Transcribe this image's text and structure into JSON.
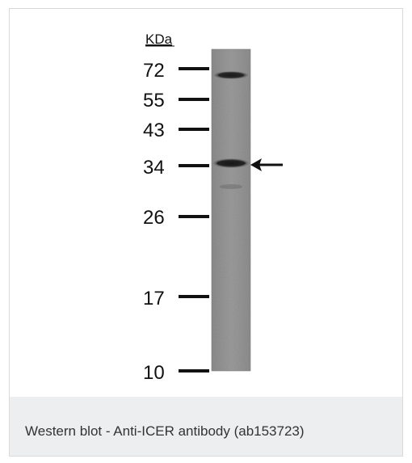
{
  "blot": {
    "unit_label": "KDa",
    "markers": [
      {
        "label": "72",
        "kda": 72
      },
      {
        "label": "55",
        "kda": 55
      },
      {
        "label": "43",
        "kda": 43
      },
      {
        "label": "34",
        "kda": 34
      },
      {
        "label": "26",
        "kda": 26
      },
      {
        "label": "17",
        "kda": 17
      },
      {
        "label": "10",
        "kda": 10
      }
    ],
    "target_band_kda": 34
  },
  "caption": {
    "text": "Western blot - Anti-ICER antibody (ab153723)"
  }
}
